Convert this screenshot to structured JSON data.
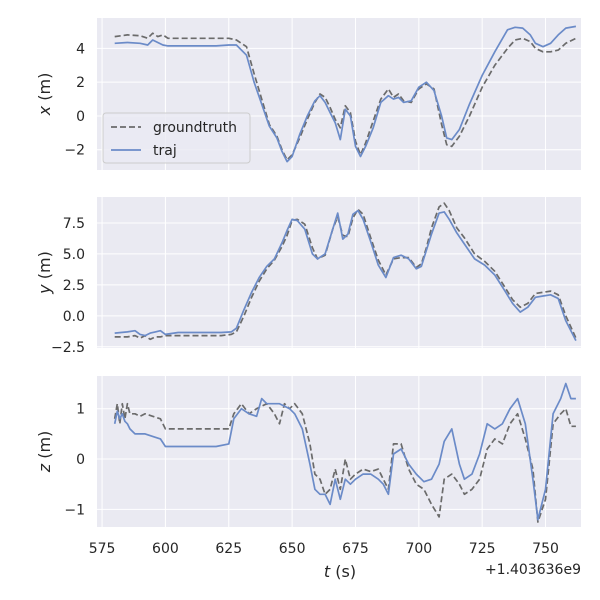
{
  "figure": {
    "offset_text": "+1.403636e9",
    "xlabel_var": "t",
    "xlabel_unit": " (s)"
  },
  "colors": {
    "panel_bg": "#EAEAF2",
    "grid": "#FFFFFF",
    "groundtruth": "#6B6B6B",
    "traj": "#6B8BC8",
    "text": "#262626"
  },
  "legend": {
    "placement": "middle-left of top panel",
    "entries": [
      "groundtruth",
      "traj"
    ]
  },
  "chart_data": [
    {
      "type": "line",
      "ylabel_var": "x",
      "ylabel_unit": " (m)",
      "xlim": [
        573,
        764
      ],
      "ylim": [
        -3.2,
        5.8
      ],
      "xticks": [
        575,
        600,
        625,
        650,
        675,
        700,
        725,
        750
      ],
      "xticklabels": [
        "",
        "",
        "",
        "",
        "",
        "",
        "",
        ""
      ],
      "yticks": [
        -2,
        0,
        2,
        4
      ],
      "yticklabels": [
        "−2",
        "0",
        "2",
        "4"
      ],
      "grid": true,
      "series": [
        {
          "name": "groundtruth",
          "style": "dashed",
          "x": [
            580,
            585,
            590,
            593,
            595,
            597,
            599,
            601,
            603,
            610,
            620,
            625,
            628,
            632,
            635,
            638,
            641,
            644,
            646,
            648,
            650,
            653,
            656,
            659,
            661,
            663,
            665,
            667,
            669,
            671,
            673,
            675,
            677,
            679,
            682,
            685,
            688,
            690,
            692,
            694,
            697,
            700,
            703,
            706,
            709,
            711,
            713,
            716,
            720,
            725,
            730,
            735,
            738,
            741,
            744,
            746,
            749,
            752,
            755,
            758,
            762
          ],
          "y": [
            4.7,
            4.8,
            4.75,
            4.6,
            4.9,
            4.7,
            4.8,
            4.6,
            4.6,
            4.6,
            4.6,
            4.6,
            4.5,
            4.1,
            2.5,
            1.0,
            -0.5,
            -1.2,
            -2.0,
            -2.6,
            -2.3,
            -1.3,
            -0.2,
            0.8,
            1.3,
            1.1,
            0.5,
            -0.2,
            -0.7,
            0.6,
            0.2,
            -1.5,
            -2.3,
            -1.6,
            -0.3,
            1.0,
            1.6,
            1.1,
            1.3,
            0.9,
            0.8,
            1.6,
            1.9,
            1.6,
            -0.5,
            -1.7,
            -1.8,
            -1.2,
            0.0,
            1.7,
            3.0,
            4.0,
            4.5,
            4.6,
            4.4,
            4.0,
            3.8,
            3.8,
            3.9,
            4.3,
            4.6
          ]
        },
        {
          "name": "traj",
          "style": "solid",
          "x": [
            580,
            585,
            590,
            593,
            595,
            597,
            599,
            601,
            603,
            610,
            620,
            625,
            628,
            632,
            635,
            638,
            641,
            644,
            646,
            648,
            650,
            653,
            656,
            659,
            661,
            663,
            665,
            667,
            669,
            671,
            673,
            675,
            677,
            679,
            682,
            685,
            688,
            690,
            692,
            694,
            697,
            700,
            703,
            706,
            709,
            711,
            713,
            716,
            720,
            725,
            730,
            735,
            738,
            741,
            744,
            746,
            749,
            752,
            755,
            758,
            762
          ],
          "y": [
            4.3,
            4.35,
            4.3,
            4.2,
            4.5,
            4.35,
            4.2,
            4.15,
            4.15,
            4.15,
            4.15,
            4.2,
            4.2,
            3.6,
            2.0,
            0.7,
            -0.6,
            -1.3,
            -2.1,
            -2.7,
            -2.4,
            -1.1,
            0.0,
            0.9,
            1.2,
            0.8,
            0.2,
            -0.4,
            -1.4,
            0.4,
            0.0,
            -1.8,
            -2.4,
            -1.8,
            -0.7,
            0.8,
            1.2,
            1.0,
            1.1,
            0.8,
            0.9,
            1.7,
            2.0,
            1.5,
            0.0,
            -1.3,
            -1.4,
            -0.8,
            0.7,
            2.4,
            3.8,
            5.1,
            5.25,
            5.2,
            4.8,
            4.3,
            4.1,
            4.3,
            4.8,
            5.2,
            5.3
          ]
        }
      ]
    },
    {
      "type": "line",
      "ylabel_var": "y",
      "ylabel_unit": " (m)",
      "xlim": [
        573,
        764
      ],
      "ylim": [
        -2.6,
        9.6
      ],
      "xticks": [
        575,
        600,
        625,
        650,
        675,
        700,
        725,
        750
      ],
      "xticklabels": [
        "",
        "",
        "",
        "",
        "",
        "",
        "",
        ""
      ],
      "yticks": [
        -2.5,
        0.0,
        2.5,
        5.0,
        7.5
      ],
      "yticklabels": [
        "−2.5",
        "0.0",
        "2.5",
        "5.0",
        "7.5"
      ],
      "grid": true,
      "series": [
        {
          "name": "groundtruth",
          "style": "dashed",
          "x": [
            580,
            585,
            588,
            590,
            592,
            594,
            596,
            598,
            600,
            605,
            615,
            622,
            626,
            628,
            631,
            634,
            637,
            640,
            643,
            646,
            648,
            650,
            652,
            655,
            658,
            660,
            663,
            666,
            668,
            670,
            672,
            674,
            676,
            678,
            681,
            684,
            687,
            690,
            693,
            696,
            699,
            701,
            703,
            705,
            708,
            710,
            712,
            715,
            718,
            722,
            726,
            730,
            734,
            737,
            740,
            743,
            746,
            749,
            752,
            755,
            758,
            762
          ],
          "y": [
            -1.7,
            -1.7,
            -1.6,
            -1.8,
            -1.6,
            -1.9,
            -1.7,
            -1.7,
            -1.6,
            -1.6,
            -1.6,
            -1.6,
            -1.5,
            -1.3,
            0.0,
            1.5,
            2.8,
            3.8,
            4.5,
            5.6,
            6.5,
            7.7,
            7.8,
            7.4,
            5.5,
            4.6,
            4.9,
            7.0,
            8.0,
            6.5,
            6.4,
            7.9,
            8.6,
            8.2,
            6.3,
            4.5,
            3.3,
            4.6,
            4.7,
            4.7,
            3.9,
            4.2,
            5.5,
            7.1,
            8.8,
            9.1,
            8.5,
            7.1,
            6.3,
            5.0,
            4.4,
            3.6,
            2.3,
            1.3,
            0.7,
            1.0,
            1.8,
            1.9,
            2.0,
            1.7,
            0.0,
            -1.8
          ]
        },
        {
          "name": "traj",
          "style": "solid",
          "x": [
            580,
            585,
            588,
            590,
            592,
            594,
            596,
            598,
            600,
            605,
            615,
            622,
            626,
            628,
            631,
            634,
            637,
            640,
            643,
            646,
            648,
            650,
            652,
            655,
            658,
            660,
            663,
            666,
            668,
            670,
            672,
            674,
            676,
            678,
            681,
            684,
            687,
            690,
            693,
            696,
            699,
            701,
            703,
            705,
            708,
            710,
            712,
            715,
            718,
            722,
            726,
            730,
            734,
            737,
            740,
            743,
            746,
            749,
            752,
            755,
            758,
            762
          ],
          "y": [
            -1.4,
            -1.3,
            -1.2,
            -1.5,
            -1.6,
            -1.4,
            -1.3,
            -1.2,
            -1.5,
            -1.35,
            -1.35,
            -1.35,
            -1.3,
            -1.0,
            0.5,
            1.9,
            3.1,
            4.0,
            4.6,
            5.9,
            6.9,
            7.8,
            7.7,
            7.0,
            5.0,
            4.6,
            5.0,
            7.0,
            8.3,
            6.2,
            6.6,
            8.2,
            8.5,
            7.8,
            6.0,
            4.1,
            3.1,
            4.7,
            4.9,
            4.6,
            3.8,
            4.0,
            5.3,
            6.6,
            8.3,
            8.4,
            7.8,
            6.7,
            5.8,
            4.6,
            4.1,
            3.3,
            2.0,
            1.0,
            0.3,
            0.7,
            1.5,
            1.6,
            1.7,
            1.4,
            -0.4,
            -2.0
          ]
        }
      ]
    },
    {
      "type": "line",
      "ylabel_var": "z",
      "ylabel_unit": " (m)",
      "xlim": [
        573,
        764
      ],
      "ylim": [
        -1.35,
        1.65
      ],
      "xticks": [
        575,
        600,
        625,
        650,
        675,
        700,
        725,
        750
      ],
      "xticklabels": [
        "575",
        "600",
        "625",
        "650",
        "675",
        "700",
        "725",
        "750"
      ],
      "yticks": [
        -1,
        0,
        1
      ],
      "yticklabels": [
        "−1",
        "0",
        "1"
      ],
      "grid": true,
      "series": [
        {
          "name": "groundtruth",
          "style": "dashed",
          "x": [
            580,
            581,
            582,
            583,
            584,
            585,
            586,
            588,
            590,
            592,
            595,
            598,
            600,
            610,
            620,
            625,
            627,
            630,
            633,
            636,
            638,
            640,
            643,
            645,
            647,
            649,
            651,
            654,
            657,
            659,
            661,
            663,
            665,
            667,
            669,
            671,
            673,
            675,
            678,
            681,
            684,
            686,
            688,
            690,
            693,
            696,
            699,
            702,
            705,
            708,
            710,
            713,
            716,
            718,
            721,
            724,
            727,
            730,
            733,
            736,
            739,
            742,
            745,
            747,
            750,
            753,
            756,
            758,
            760,
            762
          ],
          "y": [
            0.8,
            1.1,
            0.7,
            1.1,
            0.8,
            1.1,
            0.9,
            0.9,
            0.85,
            0.9,
            0.85,
            0.8,
            0.6,
            0.6,
            0.6,
            0.6,
            0.9,
            1.1,
            0.9,
            1.0,
            1.05,
            1.1,
            0.9,
            0.7,
            1.1,
            1.0,
            1.1,
            0.9,
            0.3,
            -0.3,
            -0.4,
            -0.7,
            -0.6,
            -0.2,
            -0.6,
            0.0,
            -0.4,
            -0.3,
            -0.2,
            -0.25,
            -0.2,
            -0.4,
            -0.6,
            0.3,
            0.3,
            -0.2,
            -0.5,
            -0.6,
            -0.9,
            -1.15,
            -0.4,
            -0.3,
            -0.5,
            -0.7,
            -0.6,
            -0.4,
            0.2,
            0.4,
            0.3,
            0.7,
            0.9,
            0.4,
            -0.2,
            -1.25,
            -0.8,
            0.7,
            0.9,
            1.0,
            0.65,
            0.65
          ]
        },
        {
          "name": "traj",
          "style": "solid",
          "x": [
            580,
            581,
            582,
            583,
            584,
            585,
            586,
            588,
            590,
            592,
            595,
            598,
            600,
            610,
            620,
            625,
            627,
            630,
            633,
            636,
            638,
            640,
            643,
            645,
            647,
            649,
            651,
            654,
            657,
            659,
            661,
            663,
            665,
            667,
            669,
            671,
            673,
            675,
            678,
            681,
            684,
            686,
            688,
            690,
            693,
            696,
            699,
            702,
            705,
            708,
            710,
            713,
            716,
            718,
            721,
            724,
            727,
            730,
            733,
            736,
            739,
            742,
            745,
            747,
            750,
            753,
            756,
            758,
            760,
            762
          ],
          "y": [
            0.7,
            0.95,
            0.8,
            0.9,
            0.75,
            0.7,
            0.6,
            0.5,
            0.5,
            0.5,
            0.45,
            0.4,
            0.25,
            0.25,
            0.25,
            0.3,
            0.8,
            1.0,
            0.9,
            0.85,
            1.2,
            1.1,
            1.1,
            1.1,
            1.05,
            1.0,
            0.9,
            0.6,
            -0.1,
            -0.6,
            -0.7,
            -0.7,
            -0.9,
            -0.4,
            -0.8,
            -0.4,
            -0.5,
            -0.4,
            -0.3,
            -0.3,
            -0.4,
            -0.5,
            -0.7,
            0.1,
            0.2,
            -0.1,
            -0.3,
            -0.45,
            -0.4,
            -0.1,
            0.35,
            0.6,
            -0.1,
            -0.4,
            -0.3,
            0.1,
            0.7,
            0.6,
            0.7,
            1.0,
            1.2,
            0.7,
            -0.4,
            -1.2,
            -0.6,
            0.9,
            1.2,
            1.5,
            1.2,
            1.2
          ]
        }
      ]
    }
  ]
}
